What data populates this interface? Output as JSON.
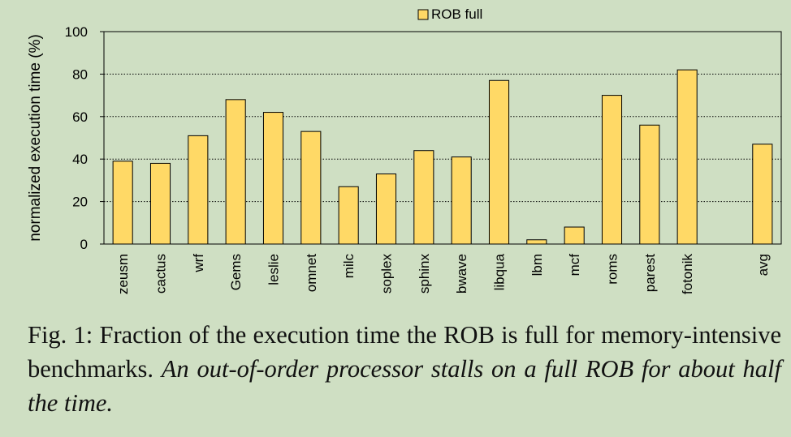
{
  "chart_data": {
    "type": "bar",
    "ylabel": "normalized execution time (%)",
    "xlabel": "",
    "ylim": [
      0,
      100
    ],
    "yticks": [
      0,
      20,
      40,
      60,
      80,
      100
    ],
    "grid": "horizontal dotted",
    "legend_position": "top-center",
    "series": [
      {
        "name": "ROB full",
        "color": "#ffd966",
        "values": [
          39,
          38,
          51,
          68,
          62,
          53,
          27,
          33,
          44,
          41,
          77,
          2,
          8,
          70,
          56,
          82,
          47
        ]
      }
    ],
    "categories": [
      "zeusm",
      "cactus",
      "wrf",
      "Gems",
      "leslie",
      "omnet",
      "milc",
      "soplex",
      "sphinx",
      "bwave",
      "libqua",
      "lbm",
      "mcf",
      "roms",
      "parest",
      "fotonik",
      "avg"
    ],
    "gap_before": [
      "avg"
    ]
  },
  "caption": {
    "label": "Fig. 1:",
    "text": "Fraction of the execution time the ROB is full for memory-intensive benchmarks.",
    "italic": "An out-of-order processor stalls on a full ROB for about half the time."
  }
}
